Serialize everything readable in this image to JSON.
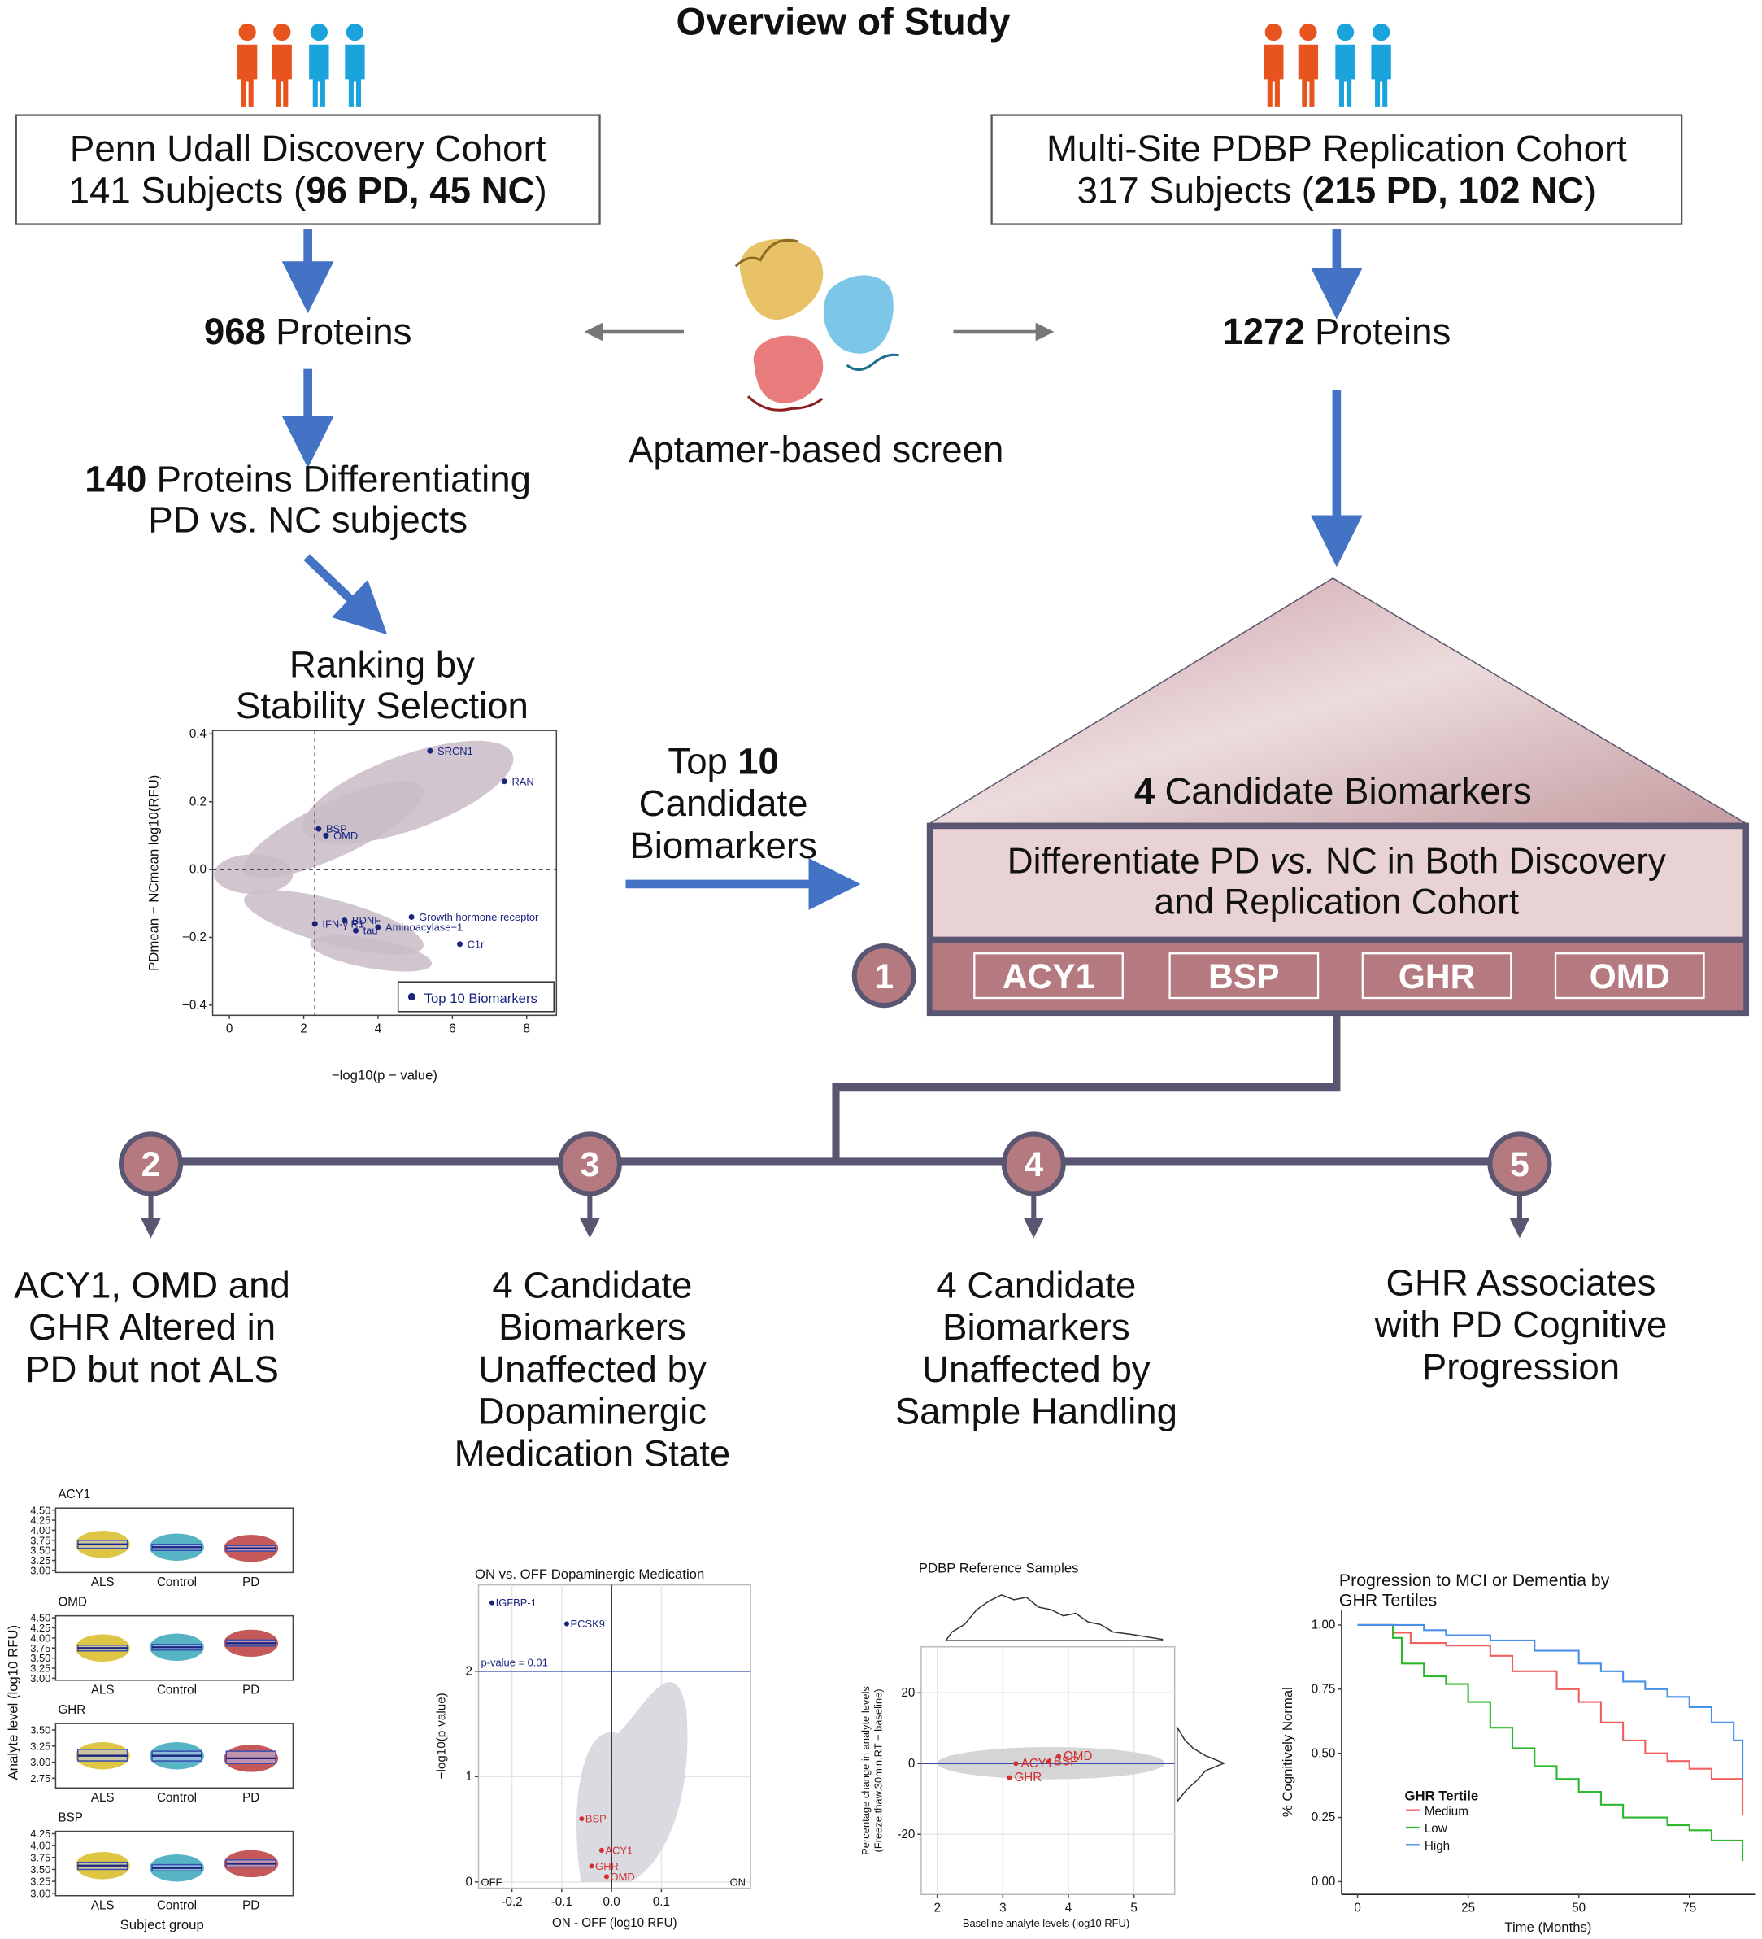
{
  "title": "Overview of Study",
  "cohorts": [
    {
      "name": "Penn Udall Discovery Cohort",
      "subjects": "141 Subjects (",
      "groups": "96 PD, 45 NC",
      "close": ")",
      "protein_count": 968,
      "protein_label": "Proteins"
    },
    {
      "name": "Multi-Site PDBP Replication Cohort",
      "subjects": "317 Subjects (",
      "groups": "215 PD, 102 NC",
      "close": ")",
      "protein_count": 1272,
      "protein_label": "Proteins"
    }
  ],
  "screen": "Aptamer-based screen",
  "differentiating": {
    "count": 140,
    "text": "Proteins Differentiating",
    "line2": "PD vs. NC subjects"
  },
  "ranking": [
    "Ranking by",
    "Stability Selection"
  ],
  "top_candidates": {
    "word": "Top",
    "count": 10,
    "lines": [
      "Candidate",
      "Biomarkers"
    ]
  },
  "candidates": {
    "count": 4,
    "label": "Candidate Biomarkers",
    "criterion": [
      "Differentiate PD ",
      "vs.",
      " NC in Both Discovery",
      "and Replication Cohort"
    ],
    "biomarkers": [
      "ACY1",
      "BSP",
      "GHR",
      "OMD"
    ]
  },
  "steps": [
    1,
    2,
    3,
    4,
    5
  ],
  "findings": [
    {
      "lines": [
        "ACY1, OMD and",
        "GHR Altered in",
        "PD but not ALS"
      ]
    },
    {
      "lines": [
        "4 Candidate",
        "Biomarkers",
        "Unaffected by",
        "Dopaminergic",
        "Medication State"
      ]
    },
    {
      "lines": [
        "4 Candidate",
        "Biomarkers",
        "Unaffected by",
        "Sample Handling"
      ]
    },
    {
      "lines": [
        "GHR Associates",
        "with PD Cognitive",
        "Progression"
      ]
    }
  ],
  "charts": {
    "stability": {
      "type": "scatter",
      "x_label": "−log10(p − value)",
      "y_label": "PDmean − NCmean log10(RFU)",
      "xlim": [
        -0.45,
        8.8
      ],
      "ylim": [
        -0.43,
        0.41
      ],
      "xticks": [
        0,
        2,
        4,
        6,
        8
      ],
      "yticks": [
        {
          "value": -0.4,
          "label": "−0.4"
        },
        {
          "value": -0.2,
          "label": "−0.2"
        },
        {
          "value": 0,
          "label": "0.0"
        },
        {
          "value": 0.2,
          "label": "0.2"
        },
        {
          "value": 0.4,
          "label": "0.4"
        }
      ],
      "threshold_x": 2.3,
      "color": "#1a237e",
      "legend": "Top 10 Biomarkers",
      "points": [
        {
          "label": "SRCN1",
          "x": 5.4,
          "y": 0.35
        },
        {
          "label": "RAN",
          "x": 7.4,
          "y": 0.26
        },
        {
          "label": "BSP",
          "x": 2.4,
          "y": 0.12
        },
        {
          "label": "OMD",
          "x": 2.6,
          "y": 0.1
        },
        {
          "label": "BDNF",
          "x": 3.1,
          "y": -0.15
        },
        {
          "label": "IFN-γ R1",
          "x": 2.3,
          "y": -0.16
        },
        {
          "label": "tau",
          "x": 3.4,
          "y": -0.18
        },
        {
          "label": "Growth hormone receptor",
          "x": 4.9,
          "y": -0.14
        },
        {
          "label": "Aminoacylase−1",
          "x": 4.0,
          "y": -0.17
        },
        {
          "label": "C1r",
          "x": 6.2,
          "y": -0.22
        }
      ]
    },
    "boxplots": {
      "type": "box",
      "y_label": "Analyte level (log10 RFU)",
      "x_label": "Subject group",
      "groups": [
        "ALS",
        "Control",
        "PD"
      ],
      "colors": [
        "#d4b106",
        "#1f9bb0",
        "#b22222"
      ],
      "panels": [
        {
          "name": "ACY1",
          "ylim": [
            2.95,
            4.55
          ],
          "yticks": [
            {
              "value": 3,
              "label": "3.00"
            },
            {
              "value": 3.25,
              "label": "3.25"
            },
            {
              "value": 3.5,
              "label": "3.50"
            },
            {
              "value": 3.75,
              "label": "3.75"
            },
            {
              "value": 4,
              "label": "4.00"
            },
            {
              "value": 4.25,
              "label": "4.25"
            },
            {
              "value": 4.5,
              "label": "4.50"
            }
          ],
          "boxes": [
            {
              "q1": 3.55,
              "median": 3.65,
              "q3": 3.75
            },
            {
              "q1": 3.5,
              "median": 3.58,
              "q3": 3.65
            },
            {
              "q1": 3.48,
              "median": 3.55,
              "q3": 3.62
            }
          ]
        },
        {
          "name": "OMD",
          "ylim": [
            2.95,
            4.55
          ],
          "yticks": [
            {
              "value": 3,
              "label": "3.00"
            },
            {
              "value": 3.25,
              "label": "3.25"
            },
            {
              "value": 3.5,
              "label": "3.50"
            },
            {
              "value": 3.75,
              "label": "3.75"
            },
            {
              "value": 4,
              "label": "4.00"
            },
            {
              "value": 4.25,
              "label": "4.25"
            },
            {
              "value": 4.5,
              "label": "4.50"
            }
          ],
          "boxes": [
            {
              "q1": 3.68,
              "median": 3.75,
              "q3": 3.82
            },
            {
              "q1": 3.7,
              "median": 3.77,
              "q3": 3.84
            },
            {
              "q1": 3.8,
              "median": 3.87,
              "q3": 3.95
            }
          ]
        },
        {
          "name": "GHR",
          "ylim": [
            2.6,
            3.6
          ],
          "yticks": [
            {
              "value": 2.75,
              "label": "2.75"
            },
            {
              "value": 3,
              "label": "3.00"
            },
            {
              "value": 3.25,
              "label": "3.25"
            },
            {
              "value": 3.5,
              "label": "3.50"
            }
          ],
          "boxes": [
            {
              "q1": 3.02,
              "median": 3.1,
              "q3": 3.2
            },
            {
              "q1": 3.02,
              "median": 3.1,
              "q3": 3.17
            },
            {
              "q1": 2.98,
              "median": 3.06,
              "q3": 3.17
            }
          ]
        },
        {
          "name": "BSP",
          "ylim": [
            2.95,
            4.3
          ],
          "yticks": [
            {
              "value": 3,
              "label": "3.00"
            },
            {
              "value": 3.25,
              "label": "3.25"
            },
            {
              "value": 3.5,
              "label": "3.50"
            },
            {
              "value": 3.75,
              "label": "3.75"
            },
            {
              "value": 4,
              "label": "4.00"
            },
            {
              "value": 4.25,
              "label": "4.25"
            }
          ],
          "boxes": [
            {
              "q1": 3.5,
              "median": 3.58,
              "q3": 3.65
            },
            {
              "q1": 3.47,
              "median": 3.53,
              "q3": 3.6
            },
            {
              "q1": 3.55,
              "median": 3.62,
              "q3": 3.7
            }
          ]
        }
      ]
    },
    "medication": {
      "type": "scatter",
      "title": "ON vs. OFF Dopaminergic Medication",
      "x_label": "ON - OFF (log10 RFU)",
      "y_label": "−log10(p-value)",
      "xlim": [
        -0.267,
        0.279
      ],
      "ylim": [
        -0.06,
        2.82
      ],
      "xticks": [
        -0.2,
        -0.1,
        {
          "value": 0,
          "label": "0.0"
        },
        0.1
      ],
      "yticks": [
        0,
        1,
        2
      ],
      "threshold_y": 2,
      "threshold_label": "p-value = 0.01",
      "left_label": "OFF",
      "right_label": "ON",
      "points": [
        {
          "label": "IGFBP-1",
          "x": -0.24,
          "y": 2.65,
          "color": "#1a237e"
        },
        {
          "label": "PCSK9",
          "x": -0.09,
          "y": 2.45,
          "color": "#1a237e"
        },
        {
          "label": "BSP",
          "x": -0.06,
          "y": 0.6,
          "color": "#d32f2f"
        },
        {
          "label": "ACY1",
          "x": -0.02,
          "y": 0.3,
          "color": "#d32f2f"
        },
        {
          "label": "GHR",
          "x": -0.04,
          "y": 0.15,
          "color": "#d32f2f"
        },
        {
          "label": "OMD",
          "x": -0.01,
          "y": 0.05,
          "color": "#d32f2f"
        }
      ]
    },
    "handling": {
      "type": "scatter",
      "title": "PDBP Reference Samples",
      "x_label": "Baseline analyte levels (log10 RFU)",
      "y_label": [
        "Percentage change in analyte levels",
        "(Freeze.thaw.30min.RT − baseline)"
      ],
      "xlim": [
        1.755,
        5.62
      ],
      "ylim": [
        -37,
        33
      ],
      "xticks": [
        2,
        3,
        4,
        5
      ],
      "yticks": [
        -20,
        0,
        20
      ],
      "points": [
        {
          "label": "ACY1",
          "x": 3.2,
          "y": 0,
          "color": "#d32f2f"
        },
        {
          "label": "BSP",
          "x": 3.7,
          "y": 0.5,
          "color": "#d32f2f"
        },
        {
          "label": "OMD",
          "x": 3.85,
          "y": 2,
          "color": "#d32f2f"
        },
        {
          "label": "GHR",
          "x": 3.1,
          "y": -4,
          "color": "#d32f2f"
        }
      ]
    },
    "progression": {
      "type": "step",
      "title": [
        "Progression to MCI or Dementia by",
        "GHR Tertiles"
      ],
      "x_label": "Time (Months)",
      "y_label": "% Cognitively Normal",
      "xlim": [
        -3.6,
        90
      ],
      "ylim": [
        -0.05,
        1.06
      ],
      "xticks": [
        0,
        25,
        50,
        75
      ],
      "yticks": [
        {
          "value": 0,
          "label": "0.00"
        },
        {
          "value": 0.25,
          "label": "0.25"
        },
        {
          "value": 0.5,
          "label": "0.50"
        },
        {
          "value": 0.75,
          "label": "0.75"
        },
        {
          "value": 1,
          "label": "1.00"
        }
      ],
      "legend_title": "GHR Tertile",
      "series": [
        {
          "name": "Medium",
          "color": "#f06060",
          "x": [
            0,
            8,
            12,
            20,
            30,
            35,
            45,
            50,
            55,
            60,
            65,
            70,
            75,
            80,
            87
          ],
          "values": [
            1,
            0.97,
            0.93,
            0.92,
            0.88,
            0.82,
            0.75,
            0.7,
            0.62,
            0.55,
            0.5,
            0.47,
            0.44,
            0.4,
            0.26
          ]
        },
        {
          "name": "Low",
          "color": "#2eb82e",
          "x": [
            0,
            8,
            10,
            15,
            20,
            25,
            30,
            35,
            40,
            45,
            50,
            55,
            60,
            70,
            75,
            80,
            87
          ],
          "values": [
            1,
            0.95,
            0.85,
            0.8,
            0.77,
            0.7,
            0.6,
            0.52,
            0.45,
            0.4,
            0.35,
            0.3,
            0.25,
            0.22,
            0.2,
            0.16,
            0.08
          ]
        },
        {
          "name": "High",
          "color": "#4a8fe8",
          "x": [
            0,
            10,
            15,
            20,
            30,
            40,
            50,
            55,
            60,
            65,
            70,
            75,
            80,
            85,
            87
          ],
          "values": [
            1,
            1,
            0.98,
            0.96,
            0.94,
            0.9,
            0.85,
            0.82,
            0.78,
            0.75,
            0.72,
            0.68,
            0.62,
            0.55,
            0.4
          ]
        }
      ]
    }
  }
}
